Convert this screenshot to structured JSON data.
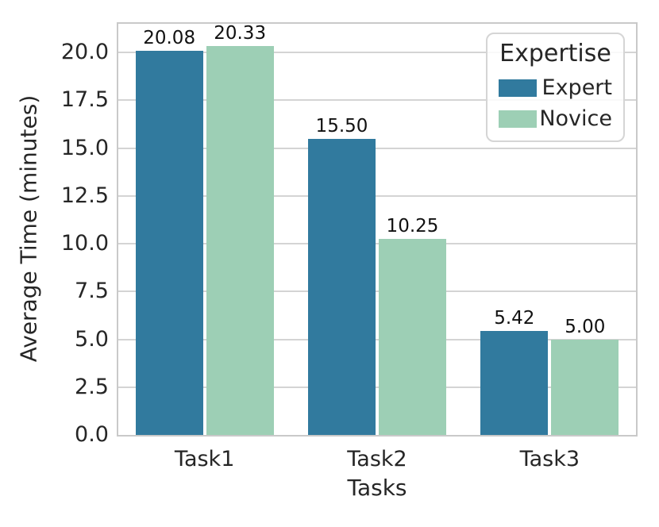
{
  "chart_data": {
    "type": "bar",
    "title": "",
    "xlabel": "Tasks",
    "ylabel": "Average Time (minutes)",
    "categories": [
      "Task1",
      "Task2",
      "Task3"
    ],
    "series": [
      {
        "name": "Expert",
        "color": "#317a9e",
        "values": [
          20.08,
          15.5,
          5.42
        ],
        "labels": [
          "20.08",
          "15.50",
          "5.42"
        ]
      },
      {
        "name": "Novice",
        "color": "#9dcfb5",
        "values": [
          20.33,
          10.25,
          5.0
        ],
        "labels": [
          "20.33",
          "10.25",
          "5.00"
        ]
      }
    ],
    "ylim": [
      0,
      21.5
    ],
    "yticks": [
      0.0,
      2.5,
      5.0,
      7.5,
      10.0,
      12.5,
      15.0,
      17.5,
      20.0
    ],
    "ytick_labels": [
      "0.0",
      "2.5",
      "5.0",
      "7.5",
      "10.0",
      "12.5",
      "15.0",
      "17.5",
      "20.0"
    ],
    "grid": true,
    "legend": {
      "title": "Expertise",
      "position": "upper right"
    }
  },
  "style": {
    "grid_color": "#d4d4d4",
    "spine_color": "#c9c9c9",
    "text_color": "#262626",
    "bar_label_color": "#111111",
    "background": "#ffffff"
  }
}
